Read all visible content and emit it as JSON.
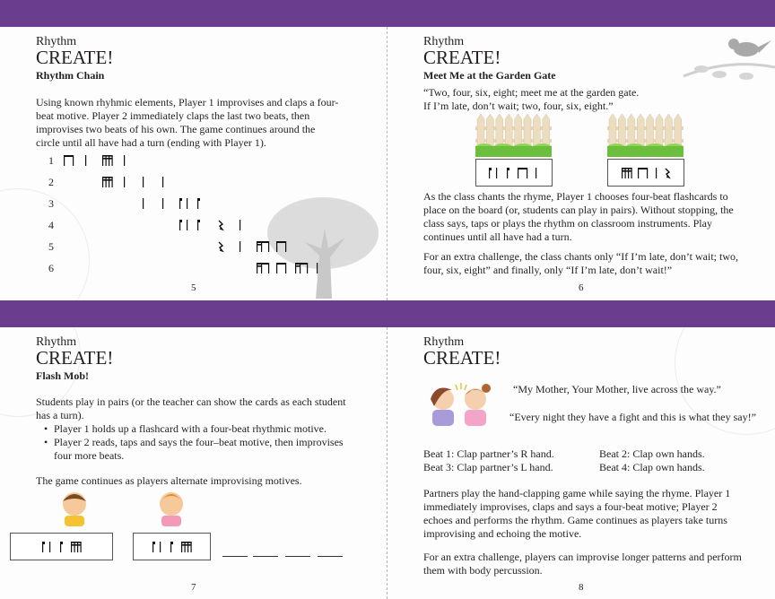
{
  "colors": {
    "band": "#6a3d8f",
    "text": "#231f20"
  },
  "pages": [
    {
      "number": "5",
      "section": "Rhythm",
      "heading": "CREATE!",
      "title": "Rhythm Chain",
      "paragraphs": [
        "Using known rhyhmic elements, Player 1 improvises and claps a four-beat motive. Player 2 immediately claps the last two beats, then improvises two beats of his own. The game continues around the circle until all have had a turn (ending with Player 1)."
      ],
      "chain": [
        {
          "label": "1",
          "rhythm": [
            "titi",
            "ta",
            "tiri",
            "ta"
          ]
        },
        {
          "label": "2",
          "rhythm": [
            "tiri",
            "ta",
            "ta",
            "ta"
          ]
        },
        {
          "label": "3",
          "rhythm": [
            "ta",
            "ta",
            "syncopa"
          ]
        },
        {
          "label": "4",
          "rhythm": [
            "syncopa",
            "rest",
            "ta"
          ]
        },
        {
          "label": "5",
          "rhythm": [
            "rest",
            "ta",
            "tikati",
            "titi"
          ]
        },
        {
          "label": "6",
          "rhythm": [
            "tikati",
            "titi",
            "tikati",
            "ta"
          ]
        }
      ],
      "illustration": "tree-icon"
    },
    {
      "number": "6",
      "section": "Rhythm",
      "heading": "CREATE!",
      "title": "Meet Me at the Garden Gate",
      "rhyme": [
        "“Two, four, six, eight; meet me at the garden gate.",
        "If I’m late, don’t wait; two, four, six, eight.”"
      ],
      "cards": [
        [
          "syncopa",
          "titi",
          "ta"
        ],
        [
          "tiri",
          "titi",
          "ta",
          "rest"
        ]
      ],
      "paragraphs": [
        "As the class chants the rhyme, Player 1 chooses four-beat flashcards to place on the board (or, students can play in pairs). Without stopping, the class says, taps or plays the rhythm on classroom instruments. Play continues until all have had a turn.",
        "For an extra challenge, the class chants only “If I’m late, don’t wait; two, four, six, eight” and finally, only “If I’m late, don’t wait!”"
      ],
      "illustration": "bird-icon"
    },
    {
      "number": "7",
      "section": "Rhythm",
      "heading": "CREATE!",
      "title": "Flash Mob!",
      "paragraphs": [
        "Students play in pairs (or the teacher can show the cards as each student has a turn).",
        "The game continues as players alternate improvising motives."
      ],
      "bullets": [
        "Player 1 holds up a flashcard with a four-beat rhythmic motive.",
        "Player 2 reads, taps and says the four–beat motive, then improvises four more beats."
      ],
      "cards": [
        [
          "syncopa",
          "tiri"
        ],
        [
          "syncopa",
          "tiri"
        ]
      ]
    },
    {
      "number": "8",
      "section": "Rhythm",
      "heading": "CREATE!",
      "rhyme": [
        "“My Mother, Your Mother, live across the way.”",
        "“Every night they have a fight and this is what they say!”"
      ],
      "beats": [
        "Beat 1: Clap partner’s R hand.",
        "Beat 2: Clap own hands.",
        "Beat 3: Clap partner’s L hand.",
        "Beat 4: Clap own hands."
      ],
      "paragraphs": [
        "Partners play the hand-clapping game while saying the rhyme. Player 1 immediately improvises, claps and says a four-beat motive; Player 2 echoes and performs the rhythm. Game continues as players take turns improvising and echoing the motive.",
        "For an extra challenge, players can improvise longer patterns and perform them with body percussion."
      ]
    }
  ]
}
